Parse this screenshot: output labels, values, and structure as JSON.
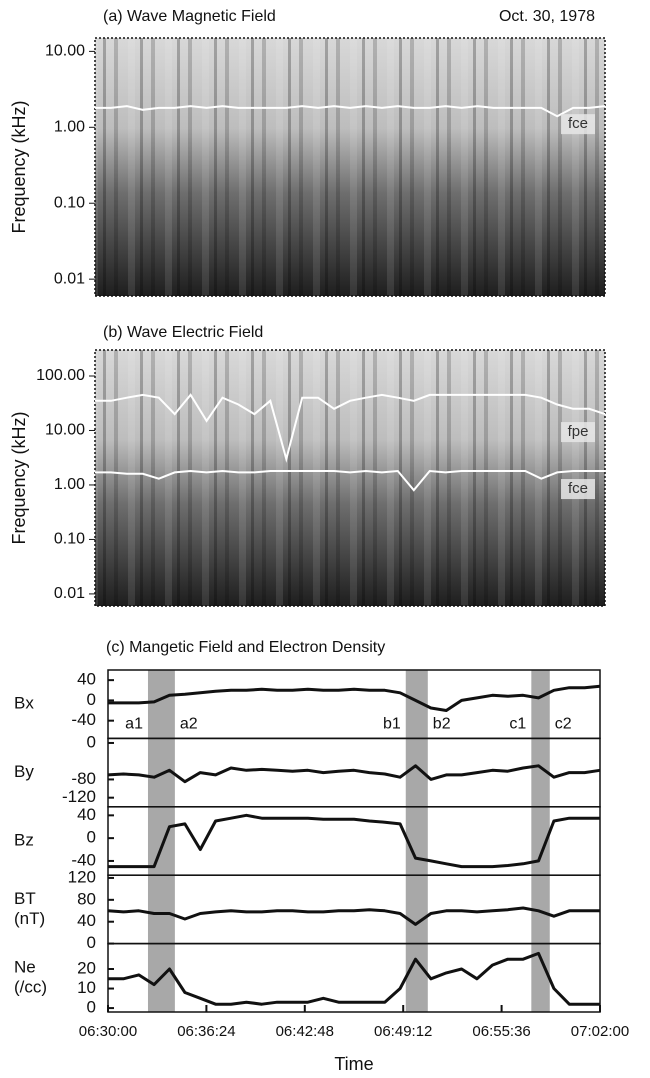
{
  "chart_data": [
    {
      "type": "spectrogram",
      "title": "(a) Wave Magnetic Field",
      "date": "Oct. 30, 1978",
      "ylabel": "Frequency (kHz)",
      "log_y": true,
      "xlim": [
        "06:30:00",
        "07:02:00"
      ],
      "x": [
        "06:30:00",
        "06:31:00",
        "06:32:00",
        "06:33:00",
        "06:34:00",
        "06:35:00",
        "06:36:00",
        "06:37:00",
        "06:38:00",
        "06:39:00",
        "06:40:00",
        "06:41:00",
        "06:42:00",
        "06:43:00",
        "06:44:00",
        "06:45:00",
        "06:46:00",
        "06:47:00",
        "06:48:00",
        "06:49:00",
        "06:50:00",
        "06:51:00",
        "06:52:00",
        "06:53:00",
        "06:54:00",
        "06:55:00",
        "06:56:00",
        "06:57:00",
        "06:58:00",
        "06:59:00",
        "07:00:00",
        "07:01:00",
        "07:02:00"
      ],
      "ylim": [
        0.006,
        15
      ],
      "yticks": [
        {
          "value": 0.01,
          "label": "0.01"
        },
        {
          "value": 0.1,
          "label": "0.10"
        },
        {
          "value": 1,
          "label": "1.00"
        },
        {
          "value": 10,
          "label": "10.00"
        }
      ],
      "series": [
        {
          "name": "fce",
          "color": "#ffffff",
          "values": [
            1.8,
            1.8,
            1.9,
            1.7,
            1.8,
            1.8,
            1.9,
            1.8,
            1.9,
            1.8,
            1.8,
            1.8,
            1.8,
            1.9,
            1.8,
            1.9,
            1.8,
            1.9,
            1.8,
            1.9,
            1.8,
            1.8,
            1.9,
            1.8,
            1.9,
            1.8,
            1.8,
            1.8,
            1.8,
            1.4,
            1.8,
            1.8,
            1.9
          ]
        }
      ]
    },
    {
      "type": "spectrogram",
      "title": "(b) Wave Electric Field",
      "ylabel": "Frequency (kHz)",
      "log_y": true,
      "xlim": [
        "06:30:00",
        "07:02:00"
      ],
      "x": [
        "06:30:00",
        "06:31:00",
        "06:32:00",
        "06:33:00",
        "06:34:00",
        "06:35:00",
        "06:36:00",
        "06:37:00",
        "06:38:00",
        "06:39:00",
        "06:40:00",
        "06:41:00",
        "06:42:00",
        "06:43:00",
        "06:44:00",
        "06:45:00",
        "06:46:00",
        "06:47:00",
        "06:48:00",
        "06:49:00",
        "06:50:00",
        "06:51:00",
        "06:52:00",
        "06:53:00",
        "06:54:00",
        "06:55:00",
        "06:56:00",
        "06:57:00",
        "06:58:00",
        "06:59:00",
        "07:00:00",
        "07:01:00",
        "07:02:00"
      ],
      "ylim": [
        0.006,
        300
      ],
      "yticks": [
        {
          "value": 0.01,
          "label": "0.01"
        },
        {
          "value": 0.1,
          "label": "0.10"
        },
        {
          "value": 1,
          "label": "1.00"
        },
        {
          "value": 10,
          "label": "10.00"
        },
        {
          "value": 100,
          "label": "100.00"
        }
      ],
      "series": [
        {
          "name": "fpe",
          "color": "#ffffff",
          "values": [
            35,
            35,
            40,
            45,
            40,
            20,
            45,
            15,
            40,
            30,
            20,
            35,
            3,
            40,
            40,
            25,
            35,
            40,
            45,
            40,
            35,
            45,
            45,
            45,
            45,
            45,
            45,
            45,
            40,
            30,
            25,
            25,
            20
          ]
        },
        {
          "name": "fce",
          "color": "#ffffff",
          "values": [
            1.7,
            1.7,
            1.6,
            1.6,
            1.3,
            1.7,
            1.8,
            1.7,
            1.8,
            1.7,
            1.7,
            1.8,
            1.8,
            1.8,
            1.8,
            1.8,
            1.7,
            1.8,
            1.7,
            1.8,
            0.8,
            1.8,
            1.7,
            1.8,
            1.8,
            1.8,
            1.8,
            1.8,
            1.3,
            1.7,
            1.8,
            1.8,
            1.8
          ]
        }
      ]
    },
    {
      "type": "stacked_line",
      "title": "(c) Mangetic Field and Electron Density",
      "xlabel": "Time",
      "color": "#111111",
      "shade_color": "#a8a8a8",
      "xlim": [
        "06:30:00",
        "07:02:00"
      ],
      "xticks": [
        "06:30:00",
        "06:36:24",
        "06:42:48",
        "06:49:12",
        "06:55:36",
        "07:02:00"
      ],
      "x": [
        "06:30:00",
        "06:31:00",
        "06:32:00",
        "06:33:00",
        "06:34:00",
        "06:35:00",
        "06:36:00",
        "06:37:00",
        "06:38:00",
        "06:39:00",
        "06:40:00",
        "06:41:00",
        "06:42:00",
        "06:43:00",
        "06:44:00",
        "06:45:00",
        "06:46:00",
        "06:47:00",
        "06:48:00",
        "06:49:00",
        "06:50:00",
        "06:51:00",
        "06:52:00",
        "06:53:00",
        "06:54:00",
        "06:55:00",
        "06:56:00",
        "06:57:00",
        "06:58:00",
        "06:59:00",
        "07:00:00",
        "07:01:00",
        "07:02:00"
      ],
      "shaded": [
        {
          "start": "06:32:36",
          "end": "06:34:21",
          "labels": [
            "a1",
            "a2"
          ]
        },
        {
          "start": "06:49:22",
          "end": "06:50:48",
          "labels": [
            "b1",
            "b2"
          ]
        },
        {
          "start": "06:57:32",
          "end": "06:58:44",
          "labels": [
            "c1",
            "c2"
          ]
        }
      ],
      "panels": [
        {
          "ylabel": [
            "Bx"
          ],
          "ylim": [
            -75,
            60
          ],
          "yticks": [
            -40,
            0,
            40
          ],
          "values": [
            -5,
            -5,
            -5,
            -3,
            10,
            12,
            15,
            18,
            20,
            20,
            22,
            20,
            20,
            22,
            20,
            20,
            22,
            20,
            20,
            15,
            0,
            -15,
            -20,
            0,
            5,
            10,
            8,
            10,
            5,
            20,
            25,
            25,
            28
          ]
        },
        {
          "ylabel": [
            "By"
          ],
          "ylim": [
            -140,
            10
          ],
          "yticks": [
            -120,
            -80,
            0
          ],
          "values": [
            -70,
            -68,
            -70,
            -75,
            -60,
            -85,
            -65,
            -70,
            -55,
            -60,
            -58,
            -60,
            -62,
            -60,
            -65,
            -62,
            -60,
            -65,
            -68,
            -75,
            -50,
            -80,
            -70,
            -70,
            -65,
            -60,
            -62,
            -55,
            -50,
            -75,
            -65,
            -65,
            -60
          ]
        },
        {
          "ylabel": [
            "Bz"
          ],
          "ylim": [
            -65,
            55
          ],
          "yticks": [
            -40,
            0,
            40
          ],
          "values": [
            -50,
            -50,
            -50,
            -50,
            20,
            25,
            -20,
            30,
            35,
            40,
            35,
            35,
            35,
            35,
            33,
            33,
            33,
            30,
            28,
            25,
            -35,
            -40,
            -45,
            -50,
            -50,
            -50,
            -48,
            -45,
            -40,
            30,
            35,
            35,
            35
          ]
        },
        {
          "ylabel": [
            "BT",
            "(nT)"
          ],
          "ylim": [
            0,
            125
          ],
          "yticks": [
            0,
            40,
            80,
            120
          ],
          "values": [
            60,
            58,
            60,
            55,
            55,
            45,
            55,
            58,
            60,
            58,
            58,
            60,
            60,
            58,
            58,
            60,
            60,
            62,
            60,
            55,
            35,
            55,
            60,
            60,
            58,
            60,
            62,
            65,
            60,
            50,
            60,
            60,
            60
          ]
        },
        {
          "ylabel": [
            "Ne",
            "(/cc)"
          ],
          "ylim": [
            -2,
            33
          ],
          "yticks": [
            0,
            10,
            20
          ],
          "values": [
            15,
            15,
            17,
            12,
            20,
            8,
            5,
            2,
            2,
            3,
            2,
            3,
            3,
            3,
            5,
            3,
            3,
            3,
            3,
            10,
            25,
            15,
            18,
            20,
            15,
            22,
            25,
            25,
            28,
            10,
            2,
            2,
            2
          ]
        }
      ]
    }
  ]
}
